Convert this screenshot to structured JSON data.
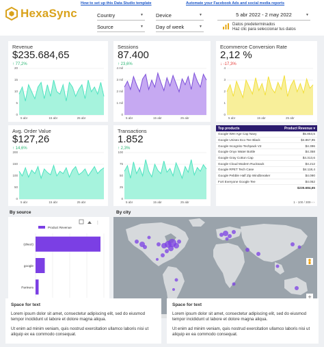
{
  "header": {
    "logo_text": "HexaSync",
    "link_template": "How to set up this Data Studio template",
    "link_automate": "Automate your Facebook Ads and social media reports",
    "filters": [
      {
        "label": "Country"
      },
      {
        "label": "Device"
      },
      {
        "label": "Source"
      },
      {
        "label": "Day of week"
      }
    ],
    "date_range": "5 abr 2022 - 2 may 2022",
    "predefined_line1": "Datos predeterminados",
    "predefined_line2": "Haz clic para seleccionar tus datos"
  },
  "kpis": [
    {
      "label": "Revenue",
      "value": "$235.684,65",
      "delta": "↑ 77,2%",
      "dir": "up",
      "color": "#4ee3c0",
      "fill": "#a6f3dd",
      "yticks": [
        "20",
        "15",
        "10",
        "5",
        "0"
      ],
      "xticks": [
        "5 abr",
        "15 abr",
        "25 abr"
      ],
      "ymax": 20,
      "series": [
        9,
        12,
        6,
        13,
        10,
        7,
        12,
        14,
        7,
        13,
        8,
        15,
        10,
        9,
        13,
        6,
        14,
        12,
        8,
        11,
        13,
        7,
        15,
        10,
        12,
        9,
        14,
        8
      ]
    },
    {
      "label": "Sessions",
      "value": "87.400",
      "delta": "↑ 23,6%",
      "dir": "up",
      "color": "#7b4fd8",
      "fill": "#c6a9f2",
      "yticks": [
        "4 mil",
        "3 mil",
        "2 mil",
        "1 mil",
        "0"
      ],
      "xticks": [
        "5 abr",
        "15 abr",
        "25 abr"
      ],
      "ymax": 4,
      "series": [
        2.4,
        2.9,
        2.2,
        3.3,
        2.6,
        2.0,
        3.1,
        3.5,
        2.2,
        3.0,
        2.4,
        3.6,
        2.8,
        2.1,
        3.2,
        2.5,
        3.4,
        2.7,
        2.0,
        3.1,
        2.6,
        3.3,
        2.2,
        3.6,
        2.9,
        2.4,
        3.5,
        3.0
      ]
    },
    {
      "label": "Ecommerce Conversion Rate",
      "value": "2,12 %",
      "delta": "↓ -17,3%",
      "dir": "down",
      "color": "#f2df3a",
      "fill": "#f8ef9a",
      "yticks": [
        "4",
        "3",
        "2",
        "1",
        "0"
      ],
      "xticks": [
        "5 abr",
        "15 abr",
        "25 abr"
      ],
      "ymax": 4,
      "series": [
        2.0,
        2.6,
        1.6,
        2.9,
        2.2,
        1.5,
        3.0,
        2.4,
        1.8,
        3.2,
        2.1,
        2.7,
        1.7,
        3.3,
        2.3,
        1.9,
        2.8,
        2.2,
        3.4,
        1.6,
        2.5,
        3.0,
        2.0,
        2.7,
        1.9,
        3.1,
        2.3,
        2.6
      ]
    },
    {
      "label": "Avg. Order Value",
      "value": "$127,26",
      "delta": "↑ 14,6%",
      "dir": "up",
      "color": "#4ee3c0",
      "fill": "#a6f3dd",
      "yticks": [
        "200",
        "150",
        "100",
        "50",
        "0"
      ],
      "xticks": [
        "5 abr",
        "15 abr",
        "25 abr"
      ],
      "ymax": 200,
      "series": [
        120,
        100,
        135,
        95,
        125,
        110,
        140,
        90,
        130,
        115,
        105,
        145,
        100,
        120,
        110,
        135,
        95,
        125,
        140,
        105,
        115,
        130,
        100,
        120,
        140,
        110,
        125,
        135
      ]
    },
    {
      "label": "Transactions",
      "value": "1.852",
      "delta": "↑ 2,3%",
      "dir": "up",
      "color": "#4ee3c0",
      "fill": "#a6f3dd",
      "yticks": [
        "100",
        "75",
        "50",
        "25",
        "0"
      ],
      "xticks": [
        "5 abr",
        "15 abr",
        "25 abr"
      ],
      "ymax": 100,
      "series": [
        60,
        72,
        45,
        80,
        55,
        68,
        50,
        85,
        60,
        48,
        75,
        62,
        55,
        82,
        58,
        66,
        50,
        78,
        63,
        45,
        70,
        58,
        85,
        52,
        68,
        60,
        74,
        65
      ]
    }
  ],
  "top_products": {
    "col1": "Top products",
    "col2": "Product Revenue ▾",
    "rows": [
      [
        "Google Wet-Age Cap Navy",
        "$5.853,5"
      ],
      [
        "Google Unisex Eco Tee Black",
        "$4.867,95"
      ],
      [
        "Google Incognito Techpack V2",
        "$4.396"
      ],
      [
        "Google Onyx Water Bottle",
        "$4.358"
      ],
      [
        "Google Gray Cotton Cap",
        "$4.313,6"
      ],
      [
        "Google Cloud Modern Rucksack",
        "$4.212"
      ],
      [
        "Google RPET Tech Case",
        "$4.118,4"
      ],
      [
        "Google Pebble Half Zip Windbreaker",
        "$4.090"
      ],
      [
        "Fort Everyone Google Tee",
        "$4.052"
      ]
    ],
    "total_label": "",
    "total_value": "$235.684,65",
    "pager": "1 - 100 / 309"
  },
  "by_source": {
    "title": "By source",
    "legend": "Product Revenue",
    "categories": [
      "(direct)",
      "google",
      "Partners"
    ],
    "xticks": [
      "0",
      "50 mil",
      "100 mil",
      "150 mil",
      "200 mil"
    ]
  },
  "by_city": {
    "title": "By city",
    "attribution_left": "Combinaciones de teclas",
    "attribution_mid": "Datos de mapas ©2022",
    "attribution_right": "Términos de uso"
  },
  "text_cards": [
    {
      "title": "Space for text",
      "p1": "Lorem ipsum dolor sit amet, consectetur adipiscing elit, sed do eiusmod tempor incididunt ut labore et dolore magna aliqua.",
      "p2": "Ut enim ad minim veniam, quis nostrud exercitation ullamco laboris nisi ut aliquip ex ea commodo consequat."
    },
    {
      "title": "Space for text",
      "p1": "Lorem ipsum dolor sit amet, consectetur adipiscing elit, sed do eiusmod tempor incididunt ut labore et dolore magna aliqua.",
      "p2": "Ut enim ad minim veniam, quis nostrud exercitation ullamco laboris nisi ut aliquip ex ea commodo consequat."
    }
  ],
  "chart_data": [
    {
      "type": "bar",
      "title": "By source",
      "categories": [
        "(direct)",
        "google",
        "Partners"
      ],
      "series": [
        {
          "name": "Product Revenue",
          "values": [
            190000,
            27000,
            9000
          ]
        }
      ],
      "xlim": [
        0,
        200000
      ],
      "xticks": [
        "0",
        "50 mil",
        "100 mil",
        "150 mil",
        "200 mil"
      ]
    }
  ]
}
